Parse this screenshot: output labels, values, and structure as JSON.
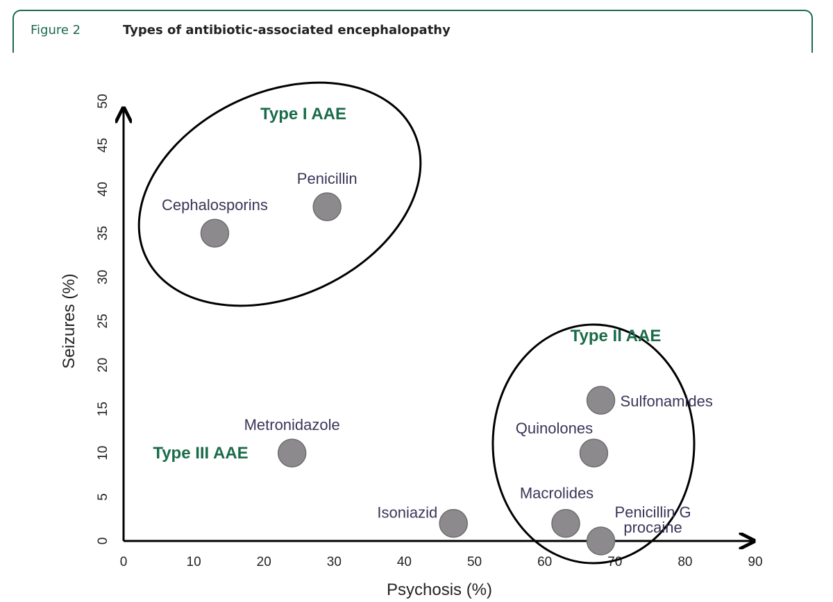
{
  "figure": {
    "label": "Figure 2",
    "title": "Types of antibiotic-associated encephalopathy"
  },
  "chart_data": {
    "type": "scatter",
    "xlabel": "Psychosis (%)",
    "ylabel": "Seizures (%)",
    "xlim": [
      0,
      90
    ],
    "ylim": [
      0,
      50
    ],
    "xticks": [
      0,
      10,
      20,
      30,
      40,
      50,
      60,
      70,
      80,
      90
    ],
    "yticks": [
      0,
      5,
      10,
      15,
      20,
      25,
      30,
      35,
      40,
      45,
      50
    ],
    "grid": false,
    "points": [
      {
        "label": "Cephalosporins",
        "x": 13,
        "y": 35
      },
      {
        "label": "Penicillin",
        "x": 29,
        "y": 38
      },
      {
        "label": "Metronidazole",
        "x": 24,
        "y": 10
      },
      {
        "label": "Isoniazid",
        "x": 47,
        "y": 2
      },
      {
        "label": "Sulfonamides",
        "x": 68,
        "y": 16
      },
      {
        "label": "Quinolones",
        "x": 67,
        "y": 10
      },
      {
        "label": "Macrolides",
        "x": 63,
        "y": 2
      },
      {
        "label": "Penicillin G procaine",
        "x": 68,
        "y": 0
      }
    ],
    "groups": [
      {
        "label": "Type I AAE",
        "members": [
          "Cephalosporins",
          "Penicillin"
        ]
      },
      {
        "label": "Type II AAE",
        "members": [
          "Sulfonamides",
          "Quinolones",
          "Macrolides",
          "Penicillin G procaine"
        ]
      },
      {
        "label": "Type III AAE",
        "members": [
          "Metronidazole"
        ]
      }
    ],
    "colors": {
      "marker": "#8c8a8d",
      "point_label": "#3b3458",
      "group_label": "#1a6b4a"
    }
  }
}
